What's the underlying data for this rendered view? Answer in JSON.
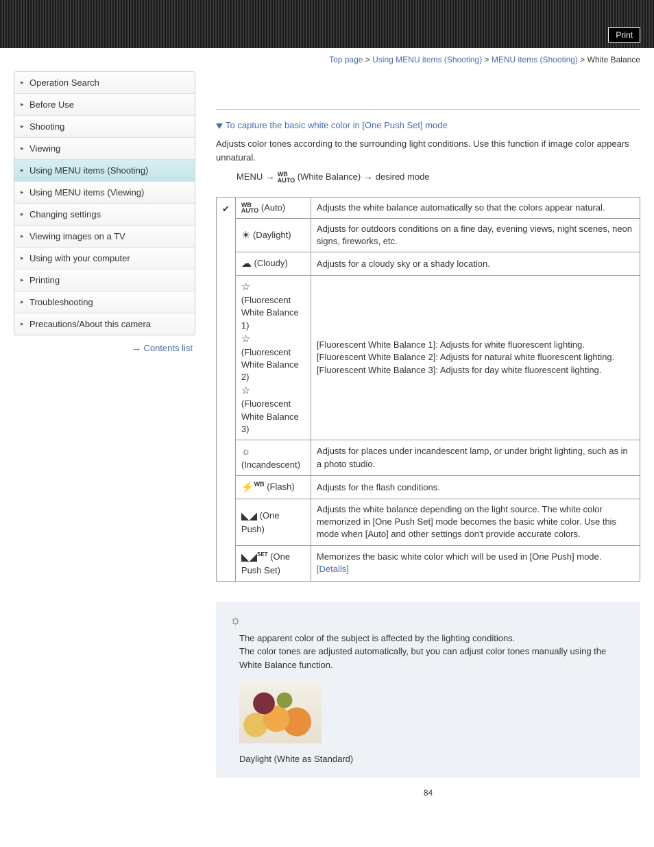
{
  "header": {
    "print": "Print"
  },
  "breadcrumb": {
    "items": [
      "Top page",
      "Using MENU items (Shooting)",
      "MENU items (Shooting)"
    ],
    "current": "White Balance"
  },
  "sidebar": {
    "items": [
      "Operation Search",
      "Before Use",
      "Shooting",
      "Viewing",
      "Using MENU items (Shooting)",
      "Using MENU items (Viewing)",
      "Changing settings",
      "Viewing images on a TV",
      "Using with your computer",
      "Printing",
      "Troubleshooting",
      "Precautions/About this camera"
    ],
    "active_index": 4,
    "contents_list": "Contents list"
  },
  "main": {
    "subhead": "To capture the basic white color in [One Push Set] mode",
    "intro": "Adjusts color tones according to the surrounding light conditions. Use this function if image color appears unnatural.",
    "path_menu": "MENU",
    "path_wb": "(White Balance)",
    "path_desired": "desired mode",
    "table": [
      {
        "check": true,
        "mode_icon": "wbauto",
        "mode": "(Auto)",
        "desc": "Adjusts the white balance automatically so that the colors appear natural."
      },
      {
        "mode_icon": "☀",
        "mode": "(Daylight)",
        "desc": "Adjusts for outdoors conditions on a fine day, evening views, night scenes, neon signs, fireworks, etc."
      },
      {
        "mode_icon": "☁",
        "mode": "(Cloudy)",
        "desc": "Adjusts for a cloudy sky or a shady location."
      },
      {
        "mode_icon": "fluor",
        "mode": "(Fluorescent White Balance 1)\n(Fluorescent White Balance 2)\n(Fluorescent White Balance 3)",
        "desc": "[Fluorescent White Balance 1]: Adjusts for white fluorescent lighting.\n[Fluorescent White Balance 2]: Adjusts for natural white fluorescent lighting.\n[Fluorescent White Balance 3]: Adjusts for day white fluorescent lighting."
      },
      {
        "mode_icon": "☼",
        "mode": "(Incandescent)",
        "desc": "Adjusts for places under incandescent lamp, or under bright lighting, such as in a photo studio."
      },
      {
        "mode_icon": "⚡WB",
        "mode": "(Flash)",
        "desc": "Adjusts for the flash conditions."
      },
      {
        "mode_icon": "◣◢",
        "mode": "(One Push)",
        "desc": "Adjusts the white balance depending on the light source. The white color memorized in [One Push Set] mode becomes the basic white color. Use this mode when [Auto] and other settings don't provide accurate colors."
      },
      {
        "mode_icon": "◣◢SET",
        "mode": "(One Push Set)",
        "desc": "Memorizes the basic white color which will be used in [One Push] mode.",
        "details": "[Details]"
      }
    ],
    "tip": {
      "line1": "The apparent color of the subject is affected by the lighting conditions.",
      "line2": "The color tones are adjusted automatically, but you can adjust color tones manually using the White Balance function.",
      "caption": "Daylight (White as Standard)"
    },
    "page": "84"
  }
}
